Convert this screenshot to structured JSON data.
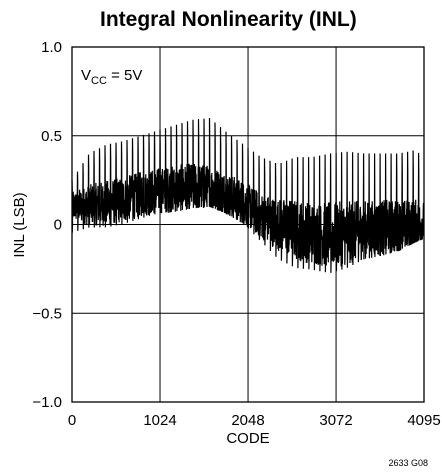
{
  "chart_data": {
    "type": "line",
    "title": "Integral Nonlinearity (INL)",
    "xlabel": "CODE",
    "ylabel": "INL (LSB)",
    "xlim": [
      0,
      4095
    ],
    "ylim": [
      -1.0,
      1.0
    ],
    "x_ticks": [
      0,
      1024,
      2048,
      3072,
      4095
    ],
    "x_tick_labels": [
      "0",
      "1024",
      "2048",
      "3072",
      "4095"
    ],
    "y_ticks": [
      1.0,
      0.5,
      0,
      -0.5,
      -1.0
    ],
    "y_tick_labels": [
      "1.0",
      "0.5",
      "0",
      "−0.5",
      "−1.0"
    ],
    "grid": true,
    "annotation": {
      "prefix": "V",
      "subscript": "CC",
      "suffix": " = 5V"
    },
    "footnote": "2633 G08",
    "series": [
      {
        "x": [
          0,
          200,
          400,
          600,
          800,
          1000,
          1200,
          1400,
          1600,
          1800,
          2000,
          2200,
          2400,
          2600,
          2800,
          3000,
          3200,
          3400,
          3600,
          3800,
          4000,
          4095
        ],
        "mean": [
          0.1,
          0.11,
          0.12,
          0.14,
          0.17,
          0.19,
          0.2,
          0.21,
          0.2,
          0.17,
          0.12,
          0.05,
          0.0,
          -0.03,
          -0.05,
          -0.06,
          -0.05,
          -0.03,
          -0.02,
          -0.01,
          0.0,
          0.01
        ],
        "max": [
          0.25,
          0.4,
          0.45,
          0.47,
          0.5,
          0.53,
          0.56,
          0.59,
          0.6,
          0.52,
          0.45,
          0.38,
          0.34,
          0.38,
          0.38,
          0.4,
          0.41,
          0.4,
          0.4,
          0.4,
          0.42,
          0.37
        ],
        "min": [
          -0.05,
          -0.02,
          -0.02,
          0.0,
          0.03,
          0.06,
          0.07,
          0.09,
          0.1,
          0.06,
          0.0,
          -0.1,
          -0.2,
          -0.25,
          -0.26,
          -0.28,
          -0.25,
          -0.2,
          -0.18,
          -0.15,
          -0.1,
          -0.08
        ]
      }
    ]
  }
}
